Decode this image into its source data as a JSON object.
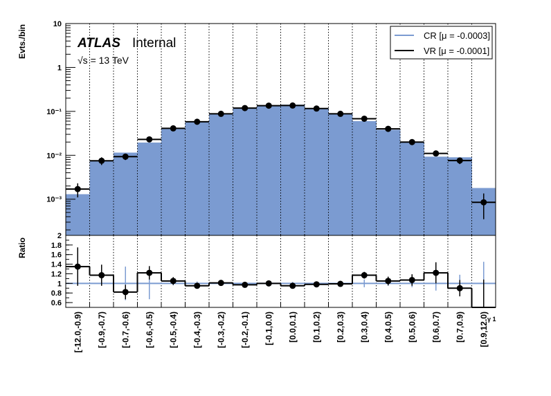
{
  "chart_data": {
    "type": "bar",
    "categories": [
      "[-12.0,-0.9)",
      "[-0.9,-0.7)",
      "[-0.7,-0.6)",
      "[-0.6,-0.5)",
      "[-0.5,-0.4)",
      "[-0.4,-0.3)",
      "[-0.3,-0.2)",
      "[-0.2,-0.1)",
      "[-0.1,0.0)",
      "[0.0,0.1)",
      "[0.1,0.2)",
      "[0.2,0.3)",
      "[0.3,0.4)",
      "[0.4,0.5)",
      "[0.5,0.6)",
      "[0.6,0.7)",
      "[0.7,0.9)",
      "[0.9,12.0)"
    ],
    "title": "",
    "branding": {
      "atlas": "ATLAS",
      "status": "Internal",
      "energy": "√s = 13 TeV"
    },
    "xlabel": "γ 1",
    "top_panel": {
      "ylabel": "Evts./bin",
      "yscale": "log",
      "ylim": [
        0.00015,
        10
      ],
      "yticks": [
        {
          "v": 10,
          "label": "10"
        },
        {
          "v": 1,
          "label": "1"
        },
        {
          "v": 0.1,
          "label": "10⁻¹"
        },
        {
          "v": 0.01,
          "label": "10⁻²"
        },
        {
          "v": 0.001,
          "label": "10⁻³"
        }
      ],
      "series": [
        {
          "name": "CR [μ = -0.0003]",
          "style": "filled-histogram",
          "color": "#7b9bd1",
          "values": [
            0.0013,
            0.0075,
            0.0115,
            0.0195,
            0.04,
            0.06,
            0.088,
            0.12,
            0.135,
            0.142,
            0.118,
            0.09,
            0.06,
            0.038,
            0.02,
            0.0093,
            0.009,
            0.0018
          ]
        },
        {
          "name": "VR [μ = -0.0001]",
          "style": "points-with-errors",
          "color": "#000000",
          "values": [
            0.0017,
            0.0075,
            0.0093,
            0.023,
            0.041,
            0.058,
            0.088,
            0.119,
            0.135,
            0.136,
            0.116,
            0.088,
            0.068,
            0.04,
            0.02,
            0.011,
            0.0076,
            0.00085
          ],
          "errors": [
            0.0006,
            0.0015,
            0.0015,
            0.0025,
            0.003,
            0.003,
            0.004,
            0.004,
            0.004,
            0.004,
            0.004,
            0.004,
            0.004,
            0.003,
            0.002,
            0.0015,
            0.0013,
            0.0005
          ]
        }
      ]
    },
    "ratio_panel": {
      "ylabel": "Ratio",
      "ylim": [
        0.5,
        2.0
      ],
      "yticks": [
        0.6,
        0.8,
        1,
        1.2,
        1.4,
        1.6,
        1.8,
        2
      ],
      "values": [
        1.35,
        1.17,
        0.82,
        1.22,
        1.05,
        0.95,
        1.01,
        0.97,
        1.0,
        0.95,
        0.98,
        0.99,
        1.17,
        1.05,
        1.07,
        1.22,
        0.9,
        0.48
      ],
      "errors": [
        0.4,
        0.22,
        0.15,
        0.14,
        0.08,
        0.06,
        0.05,
        0.04,
        0.04,
        0.04,
        0.04,
        0.05,
        0.07,
        0.09,
        0.12,
        0.22,
        0.17,
        0.6
      ],
      "reference": {
        "value": 1.0,
        "color": "#7b9bd1",
        "errors": [
          0.0,
          0.0,
          0.35,
          0.33,
          0.04,
          0.04,
          0.03,
          0.03,
          0.03,
          0.03,
          0.04,
          0.04,
          0.08,
          0.05,
          0.08,
          0.15,
          0.18,
          0.45
        ]
      }
    },
    "grid": "vertical-dotted",
    "legend_position": "top-right"
  }
}
